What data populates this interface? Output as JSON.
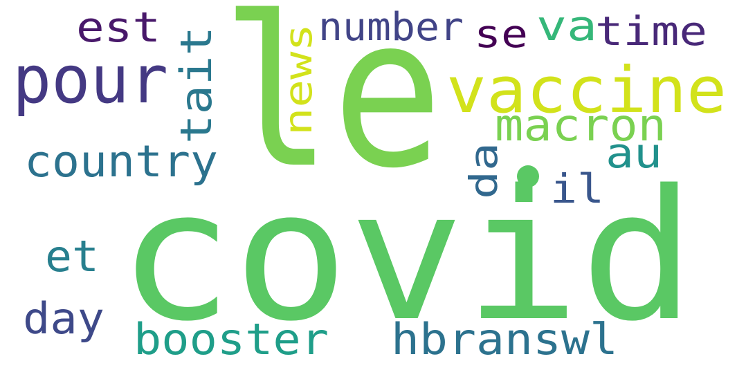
{
  "words": [
    {
      "id": "covid",
      "text": "covid",
      "color": "#5ac864"
    },
    {
      "id": "le",
      "text": "le",
      "color": "#7ad151"
    },
    {
      "id": "vaccine",
      "text": "vaccine",
      "color": "#d2e21b"
    },
    {
      "id": "pour",
      "text": "pour",
      "color": "#443983"
    },
    {
      "id": "country",
      "text": "country",
      "color": "#2c728e"
    },
    {
      "id": "macron",
      "text": "macron",
      "color": "#7ad151"
    },
    {
      "id": "booster",
      "text": "booster",
      "color": "#1f9e89"
    },
    {
      "id": "hbranswl",
      "text": "hbranswl",
      "color": "#2c728e"
    },
    {
      "id": "number",
      "text": "number",
      "color": "#414487"
    },
    {
      "id": "time",
      "text": "time",
      "color": "#482878"
    },
    {
      "id": "est",
      "text": "est",
      "color": "#48186a"
    },
    {
      "id": "va",
      "text": "va",
      "color": "#35b779"
    },
    {
      "id": "se",
      "text": "se",
      "color": "#440154"
    },
    {
      "id": "tait",
      "text": "tait",
      "color": "#2a788e"
    },
    {
      "id": "news",
      "text": "news",
      "color": "#d2e21b"
    },
    {
      "id": "da",
      "text": "da",
      "color": "#31688e"
    },
    {
      "id": "au",
      "text": "au",
      "color": "#21918c"
    },
    {
      "id": "il",
      "text": "il",
      "color": "#39568c"
    },
    {
      "id": "et",
      "text": "et",
      "color": "#277f8e"
    },
    {
      "id": "day",
      "text": "day",
      "color": "#3e4989"
    },
    {
      "id": "dot",
      "text": "•",
      "color": "#5ac864"
    }
  ]
}
